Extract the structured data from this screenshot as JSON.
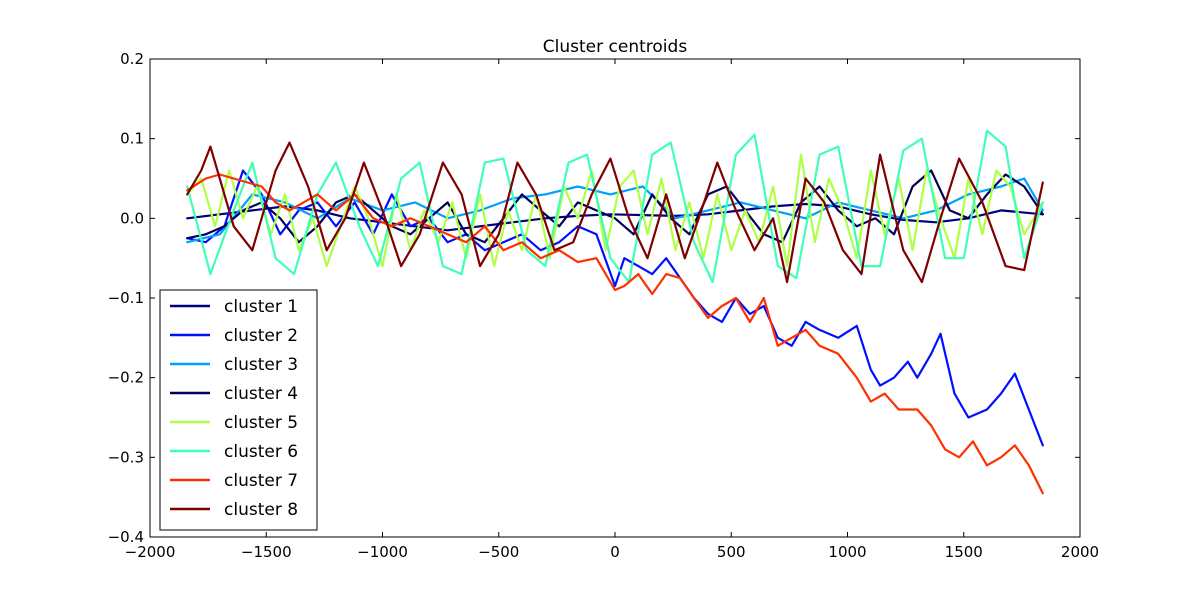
{
  "chart_data": {
    "type": "line",
    "title": "Cluster centroids",
    "xlabel": "",
    "ylabel": "",
    "xlim": [
      -2000,
      2000
    ],
    "ylim": [
      -0.4,
      0.2
    ],
    "xticks": [
      -2000,
      -1500,
      -1000,
      -500,
      0,
      500,
      1000,
      1500,
      2000
    ],
    "xtick_labels": [
      "−2000",
      "−1500",
      "−1000",
      "−500",
      "0",
      "500",
      "1000",
      "1500",
      "2000"
    ],
    "yticks": [
      0.2,
      0.1,
      0.0,
      -0.1,
      -0.2,
      -0.3,
      -0.4
    ],
    "ytick_labels": [
      "0.2",
      "0.1",
      "0.0",
      "−0.1",
      "−0.2",
      "−0.3",
      "−0.4"
    ],
    "grid": false,
    "legend_position": "lower-left",
    "series": [
      {
        "name": "cluster 1",
        "color": "#00007f",
        "x": [
          -1840,
          -1700,
          -1560,
          -1420,
          -1280,
          -1140,
          -1000,
          -860,
          -720,
          -580,
          -440,
          -300,
          -160,
          -20,
          120,
          260,
          400,
          540,
          680,
          820,
          960,
          1100,
          1240,
          1380,
          1520,
          1660,
          1840
        ],
        "y": [
          0.0,
          0.005,
          0.01,
          0.015,
          0.01,
          0.0,
          -0.005,
          -0.01,
          -0.015,
          -0.01,
          -0.005,
          0.0,
          0.003,
          0.005,
          0.004,
          0.003,
          0.005,
          0.01,
          0.015,
          0.018,
          0.015,
          0.005,
          -0.002,
          -0.005,
          0.0,
          0.01,
          0.005
        ]
      },
      {
        "name": "cluster 2",
        "color": "#0010ff",
        "x": [
          -1840,
          -1760,
          -1680,
          -1600,
          -1520,
          -1440,
          -1360,
          -1280,
          -1200,
          -1120,
          -1040,
          -960,
          -880,
          -800,
          -720,
          -640,
          -560,
          -480,
          -400,
          -320,
          -240,
          -160,
          -80,
          0,
          40,
          100,
          160,
          220,
          280,
          340,
          400,
          460,
          520,
          580,
          640,
          700,
          760,
          820,
          880,
          960,
          1040,
          1100,
          1140,
          1200,
          1260,
          1300,
          1360,
          1400,
          1460,
          1520,
          1600,
          1660,
          1720,
          1780,
          1840
        ],
        "y": [
          -0.025,
          -0.03,
          -0.01,
          0.06,
          0.03,
          -0.02,
          0.01,
          0.02,
          -0.01,
          0.02,
          -0.02,
          0.03,
          -0.01,
          0.0,
          -0.03,
          -0.02,
          -0.04,
          -0.03,
          -0.02,
          -0.04,
          -0.03,
          -0.01,
          -0.02,
          -0.085,
          -0.05,
          -0.06,
          -0.07,
          -0.05,
          -0.075,
          -0.1,
          -0.12,
          -0.13,
          -0.1,
          -0.12,
          -0.11,
          -0.15,
          -0.16,
          -0.13,
          -0.14,
          -0.15,
          -0.135,
          -0.19,
          -0.21,
          -0.2,
          -0.18,
          -0.2,
          -0.17,
          -0.145,
          -0.22,
          -0.25,
          -0.24,
          -0.22,
          -0.195,
          -0.24,
          -0.285
        ]
      },
      {
        "name": "cluster 3",
        "color": "#00a0ff",
        "x": [
          -1840,
          -1700,
          -1560,
          -1420,
          -1280,
          -1140,
          -1000,
          -860,
          -720,
          -580,
          -440,
          -300,
          -160,
          -20,
          120,
          260,
          400,
          540,
          680,
          820,
          960,
          1100,
          1240,
          1380,
          1520,
          1660,
          1760,
          1840
        ],
        "y": [
          -0.03,
          -0.02,
          0.03,
          0.02,
          0.0,
          0.025,
          0.01,
          0.02,
          0.0,
          0.01,
          0.025,
          0.03,
          0.04,
          0.03,
          0.04,
          0.0,
          0.01,
          0.02,
          0.01,
          0.0,
          0.02,
          0.01,
          0.0,
          0.01,
          0.03,
          0.04,
          0.05,
          0.01
        ]
      },
      {
        "name": "cluster 4",
        "color": "#00005a",
        "x": [
          -1840,
          -1760,
          -1680,
          -1600,
          -1520,
          -1440,
          -1360,
          -1280,
          -1200,
          -1120,
          -1040,
          -960,
          -880,
          -800,
          -720,
          -640,
          -560,
          -480,
          -400,
          -320,
          -240,
          -160,
          -80,
          0,
          80,
          160,
          240,
          320,
          400,
          480,
          560,
          640,
          720,
          800,
          880,
          960,
          1040,
          1120,
          1200,
          1280,
          1360,
          1440,
          1520,
          1600,
          1680,
          1760,
          1840
        ],
        "y": [
          -0.025,
          -0.02,
          -0.01,
          0.01,
          0.02,
          0.0,
          -0.03,
          -0.01,
          0.02,
          0.03,
          0.01,
          -0.01,
          -0.02,
          0.0,
          0.02,
          -0.02,
          -0.03,
          0.0,
          0.03,
          0.01,
          -0.01,
          0.02,
          0.01,
          0.0,
          -0.02,
          0.03,
          0.0,
          -0.02,
          0.03,
          0.04,
          0.01,
          -0.02,
          -0.03,
          0.02,
          0.04,
          0.01,
          -0.01,
          0.0,
          -0.02,
          0.04,
          0.06,
          0.01,
          0.0,
          0.03,
          0.055,
          0.04,
          0.005
        ]
      },
      {
        "name": "cluster 5",
        "color": "#b0ff47",
        "x": [
          -1840,
          -1780,
          -1720,
          -1660,
          -1600,
          -1540,
          -1480,
          -1420,
          -1360,
          -1300,
          -1240,
          -1180,
          -1120,
          -1060,
          -1000,
          -940,
          -880,
          -820,
          -760,
          -700,
          -640,
          -580,
          -520,
          -460,
          -400,
          -340,
          -280,
          -220,
          -160,
          -100,
          -40,
          20,
          80,
          140,
          200,
          260,
          320,
          380,
          440,
          500,
          560,
          620,
          680,
          740,
          800,
          860,
          920,
          980,
          1040,
          1100,
          1160,
          1220,
          1280,
          1340,
          1400,
          1460,
          1520,
          1580,
          1640,
          1700,
          1760,
          1840
        ],
        "y": [
          0.03,
          0.05,
          -0.01,
          0.06,
          0.0,
          0.04,
          -0.02,
          0.03,
          -0.04,
          0.0,
          -0.06,
          -0.01,
          0.04,
          0.0,
          -0.06,
          0.03,
          -0.04,
          0.01,
          -0.03,
          0.02,
          -0.05,
          0.03,
          -0.06,
          0.01,
          -0.04,
          0.03,
          -0.05,
          0.04,
          0.0,
          0.06,
          -0.04,
          0.04,
          0.06,
          -0.02,
          0.05,
          -0.04,
          0.02,
          -0.05,
          0.03,
          -0.04,
          0.01,
          -0.03,
          0.04,
          -0.06,
          0.08,
          -0.03,
          0.05,
          0.01,
          -0.05,
          0.06,
          -0.02,
          0.05,
          -0.04,
          0.06,
          0.0,
          -0.05,
          0.05,
          -0.02,
          0.06,
          0.04,
          -0.02,
          0.02
        ]
      },
      {
        "name": "cluster 6",
        "color": "#3fffb7",
        "x": [
          -1840,
          -1740,
          -1640,
          -1560,
          -1460,
          -1380,
          -1280,
          -1200,
          -1100,
          -1020,
          -920,
          -840,
          -740,
          -660,
          -560,
          -480,
          -380,
          -300,
          -200,
          -120,
          -20,
          60,
          160,
          240,
          340,
          420,
          520,
          600,
          700,
          780,
          880,
          960,
          1060,
          1140,
          1240,
          1320,
          1420,
          1500,
          1600,
          1680,
          1760,
          1840
        ],
        "y": [
          0.04,
          -0.07,
          0.01,
          0.07,
          -0.05,
          -0.07,
          0.03,
          0.07,
          -0.01,
          -0.06,
          0.05,
          0.07,
          -0.06,
          -0.07,
          0.07,
          0.075,
          -0.04,
          -0.06,
          0.07,
          0.08,
          -0.05,
          -0.08,
          0.08,
          0.095,
          -0.03,
          -0.08,
          0.08,
          0.105,
          -0.06,
          -0.075,
          0.08,
          0.09,
          -0.06,
          -0.06,
          0.085,
          0.1,
          -0.05,
          -0.05,
          0.11,
          0.09,
          -0.05,
          0.02
        ]
      },
      {
        "name": "cluster 7",
        "color": "#ff3000",
        "x": [
          -1840,
          -1760,
          -1700,
          -1640,
          -1580,
          -1520,
          -1460,
          -1400,
          -1340,
          -1280,
          -1200,
          -1120,
          -1040,
          -960,
          -880,
          -800,
          -720,
          -640,
          -560,
          -480,
          -400,
          -320,
          -240,
          -160,
          -80,
          0,
          40,
          100,
          160,
          220,
          280,
          340,
          400,
          460,
          520,
          580,
          640,
          700,
          760,
          820,
          880,
          960,
          1040,
          1100,
          1160,
          1220,
          1300,
          1360,
          1420,
          1480,
          1540,
          1600,
          1660,
          1720,
          1780,
          1840
        ],
        "y": [
          0.035,
          0.05,
          0.055,
          0.05,
          0.045,
          0.04,
          0.02,
          0.01,
          0.02,
          0.03,
          0.01,
          0.03,
          0.0,
          -0.01,
          0.0,
          -0.01,
          -0.02,
          -0.03,
          -0.01,
          -0.04,
          -0.03,
          -0.05,
          -0.04,
          -0.055,
          -0.05,
          -0.09,
          -0.085,
          -0.07,
          -0.095,
          -0.07,
          -0.075,
          -0.1,
          -0.125,
          -0.11,
          -0.1,
          -0.13,
          -0.1,
          -0.16,
          -0.15,
          -0.14,
          -0.16,
          -0.17,
          -0.2,
          -0.23,
          -0.22,
          -0.24,
          -0.24,
          -0.26,
          -0.29,
          -0.3,
          -0.28,
          -0.31,
          -0.3,
          -0.285,
          -0.31,
          -0.345
        ]
      },
      {
        "name": "cluster 8",
        "color": "#7f0000",
        "x": [
          -1840,
          -1780,
          -1740,
          -1640,
          -1560,
          -1460,
          -1400,
          -1320,
          -1240,
          -1160,
          -1080,
          -1000,
          -920,
          -840,
          -740,
          -660,
          -580,
          -500,
          -420,
          -340,
          -260,
          -180,
          -100,
          -20,
          60,
          140,
          220,
          300,
          360,
          440,
          520,
          600,
          680,
          740,
          820,
          900,
          980,
          1060,
          1140,
          1240,
          1320,
          1400,
          1480,
          1580,
          1680,
          1760,
          1840
        ],
        "y": [
          0.03,
          0.06,
          0.09,
          -0.01,
          -0.04,
          0.06,
          0.095,
          0.04,
          -0.04,
          0.0,
          0.07,
          0.01,
          -0.06,
          -0.02,
          0.07,
          0.03,
          -0.06,
          -0.02,
          0.07,
          0.03,
          -0.04,
          -0.03,
          0.03,
          0.075,
          0.0,
          -0.05,
          0.03,
          -0.05,
          0.0,
          0.07,
          0.01,
          -0.04,
          0.0,
          -0.08,
          0.05,
          0.02,
          -0.04,
          -0.07,
          0.08,
          -0.04,
          -0.08,
          0.0,
          0.075,
          0.02,
          -0.06,
          -0.065,
          0.045
        ]
      }
    ]
  }
}
